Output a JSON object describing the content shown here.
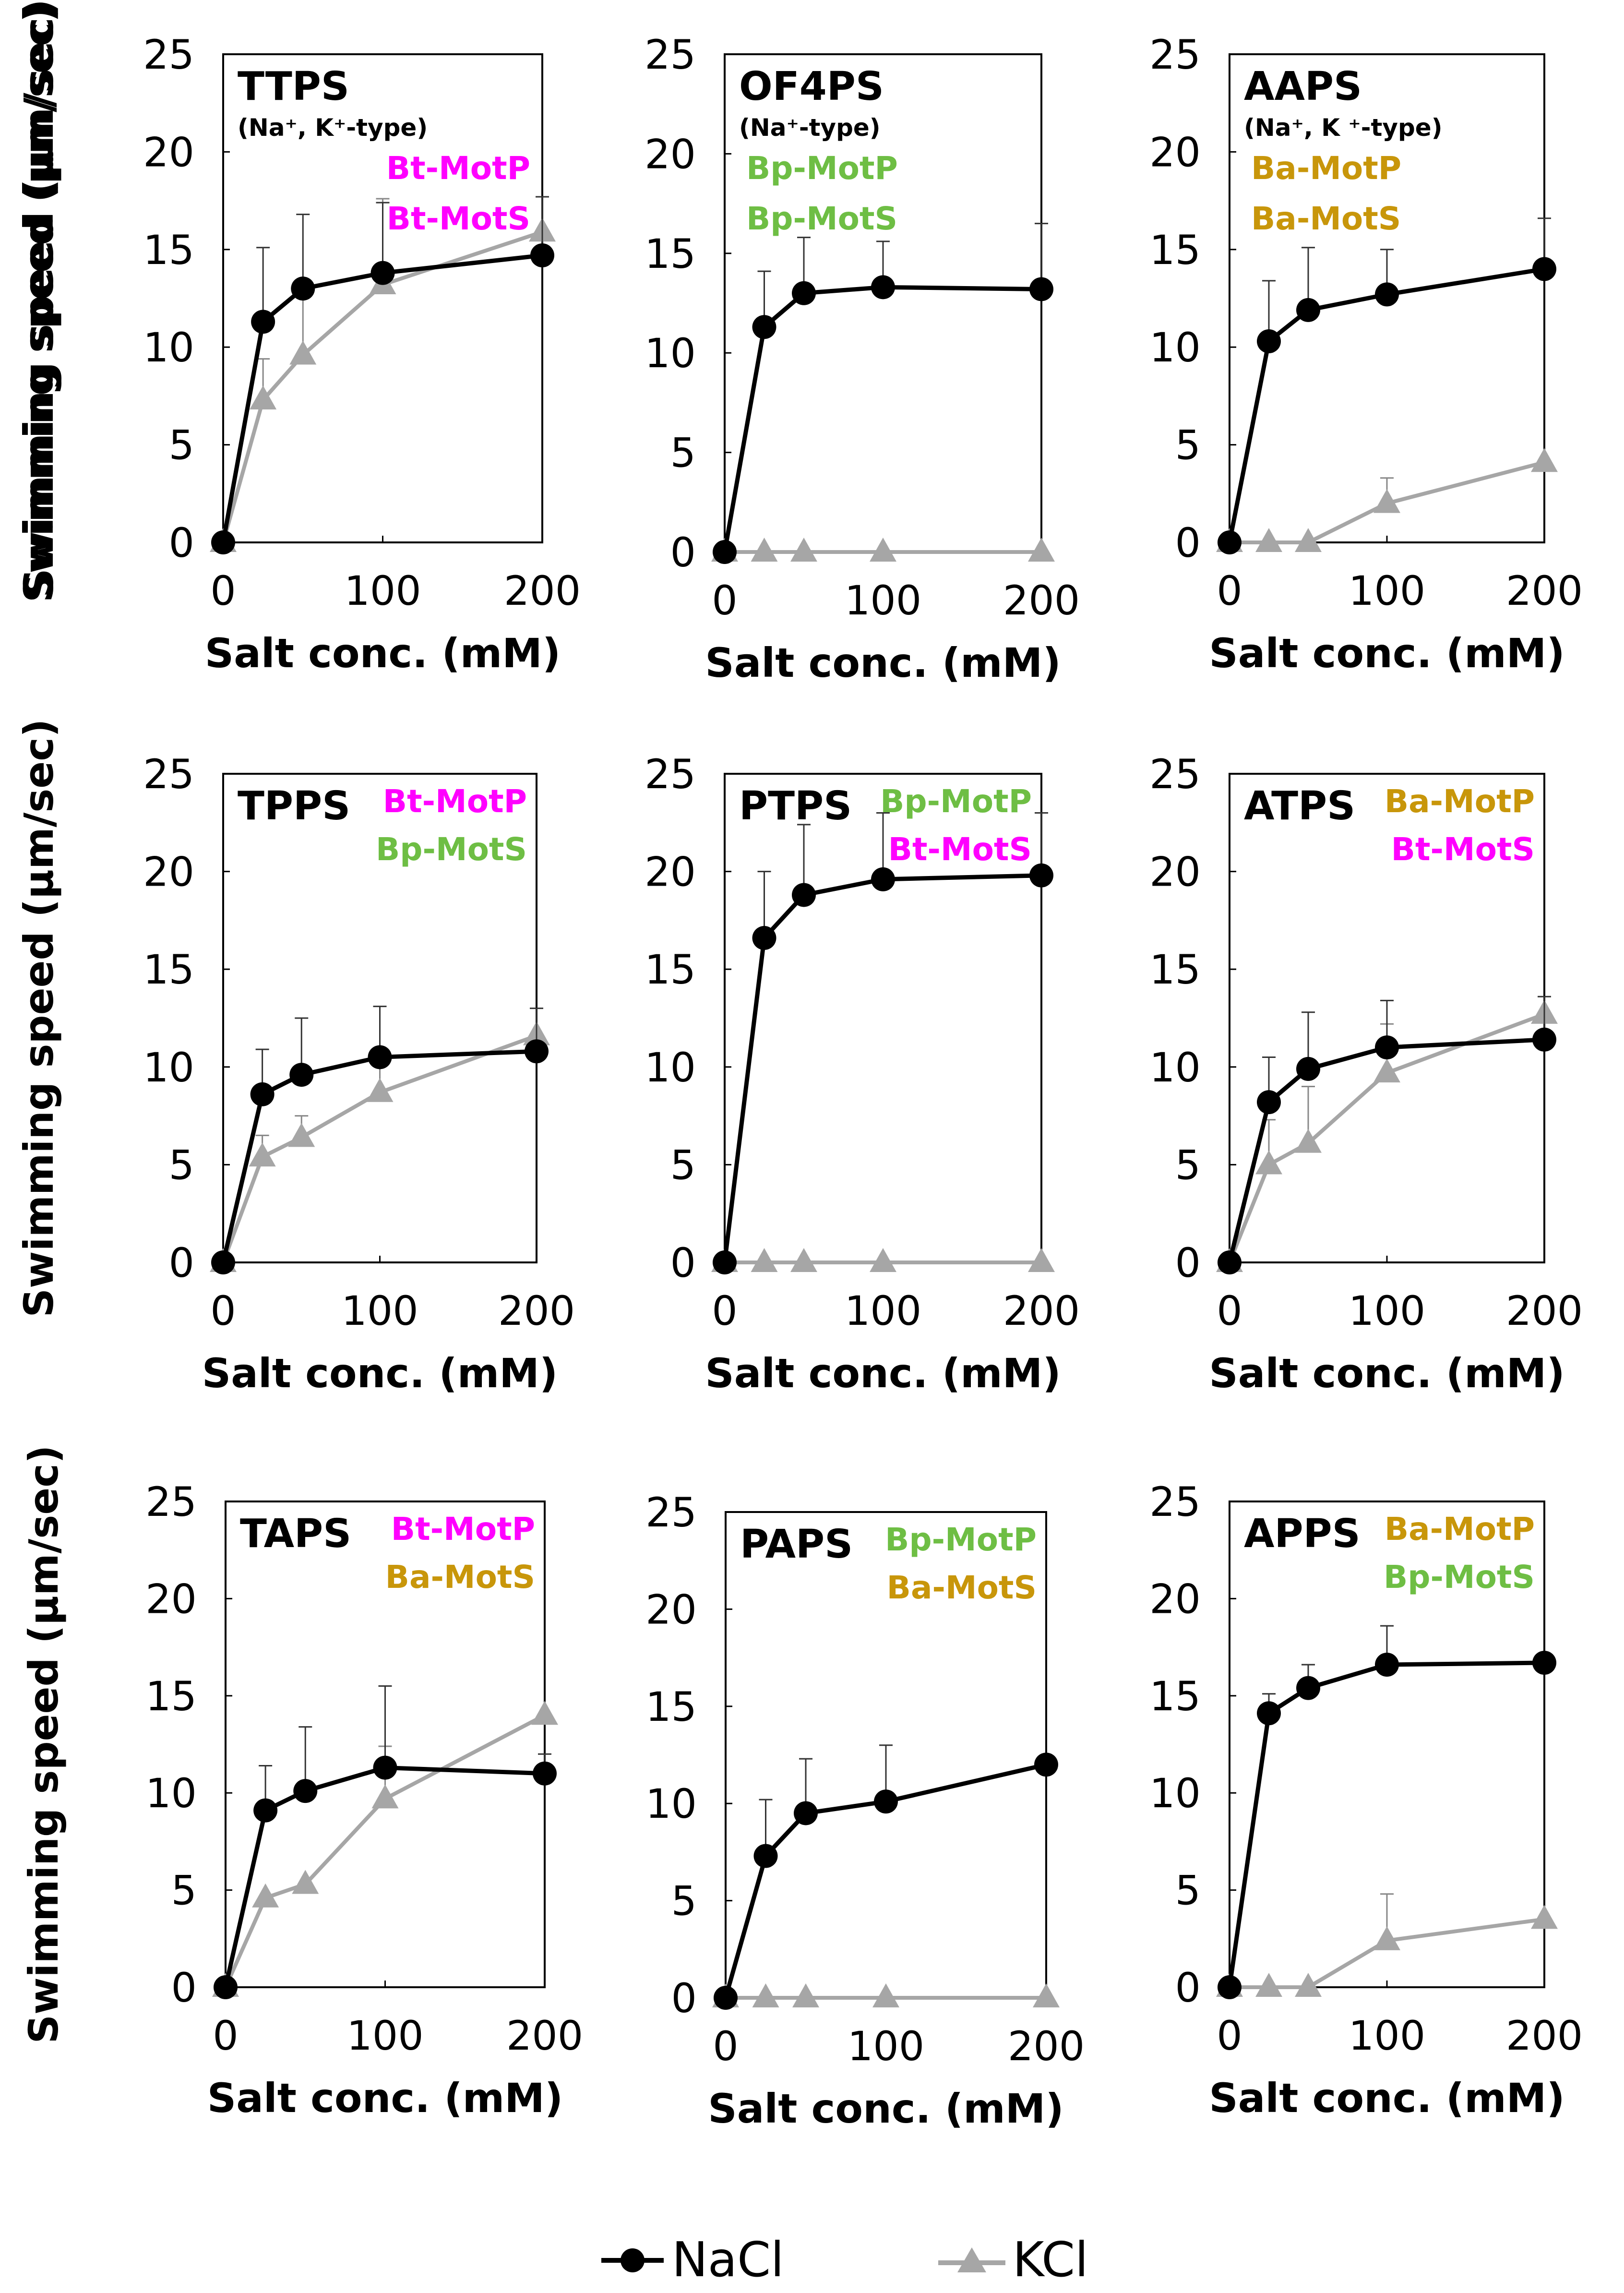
{
  "colors": {
    "nacl": "#000000",
    "kcl": "#a6a6a6",
    "Bt": "#ff00ff",
    "Bp": "#6ebe44",
    "Ba": "#c8960a"
  },
  "axis_texts": {
    "xlabel": "Salt conc. (mM)",
    "ylabel": "Swimming speed (μm/sec)"
  },
  "legend": {
    "nacl": "NaCl",
    "kcl": "KCl"
  },
  "chart_data": [
    {
      "type": "line",
      "title": "TTPS",
      "subtitle": "(Na⁺, K⁺-type)",
      "stator_labels": [
        {
          "text": "Bt-MotP",
          "color_key": "Bt"
        },
        {
          "text": "Bt-MotS",
          "color_key": "Bt"
        }
      ],
      "xlabel": "Salt conc. (mM)",
      "ylabel": "Swimming speed (μm/sec)",
      "xlim": [
        0,
        200
      ],
      "ylim": [
        0,
        25
      ],
      "xticks": [
        "0",
        "100",
        "200"
      ],
      "yticks": [
        "0",
        "5",
        "10",
        "15",
        "20",
        "25"
      ],
      "x": [
        0,
        25,
        50,
        100,
        200
      ],
      "series": [
        {
          "name": "NaCl",
          "values": [
            0,
            11.3,
            13.0,
            13.8,
            14.7
          ],
          "errors": [
            0,
            3.8,
            3.8,
            3.6,
            3.0
          ]
        },
        {
          "name": "KCl",
          "values": [
            0,
            7.3,
            9.6,
            13.2,
            15.9
          ],
          "errors": [
            0,
            2.1,
            3.2,
            4.4,
            0
          ]
        }
      ]
    },
    {
      "type": "line",
      "title": "OF4PS",
      "subtitle": "(Na⁺-type)",
      "stator_labels": [
        {
          "text": "Bp-MotP",
          "color_key": "Bp"
        },
        {
          "text": "Bp-MotS",
          "color_key": "Bp"
        }
      ],
      "xlabel": "Salt conc. (mM)",
      "ylabel": "Swimming speed (μm/sec)",
      "xlim": [
        0,
        200
      ],
      "ylim": [
        0,
        25
      ],
      "xticks": [
        "0",
        "100",
        "200"
      ],
      "yticks": [
        "0",
        "5",
        "10",
        "15",
        "20",
        "25"
      ],
      "x": [
        0,
        25,
        50,
        100,
        200
      ],
      "series": [
        {
          "name": "NaCl",
          "values": [
            0,
            11.3,
            13.0,
            13.3,
            13.2
          ],
          "errors": [
            0,
            2.8,
            2.8,
            2.3,
            3.3
          ]
        },
        {
          "name": "KCl",
          "values": [
            0,
            0,
            0,
            0,
            0
          ],
          "errors": [
            0,
            0,
            0,
            0,
            0
          ]
        }
      ]
    },
    {
      "type": "line",
      "title": "AAPS",
      "subtitle": "(Na⁺, K ⁺-type)",
      "stator_labels": [
        {
          "text": "Ba-MotP",
          "color_key": "Ba"
        },
        {
          "text": "Ba-MotS",
          "color_key": "Ba"
        }
      ],
      "xlabel": "Salt conc. (mM)",
      "ylabel": "Swimming speed (μm/sec)",
      "xlim": [
        0,
        200
      ],
      "ylim": [
        0,
        25
      ],
      "xticks": [
        "0",
        "100",
        "200"
      ],
      "yticks": [
        "0",
        "5",
        "10",
        "15",
        "20",
        "25"
      ],
      "x": [
        0,
        25,
        50,
        100,
        200
      ],
      "series": [
        {
          "name": "NaCl",
          "values": [
            0,
            10.3,
            11.9,
            12.7,
            14.0
          ],
          "errors": [
            0,
            3.1,
            3.2,
            2.3,
            2.6
          ]
        },
        {
          "name": "KCl",
          "values": [
            0,
            0,
            0,
            2.0,
            4.1
          ],
          "errors": [
            0,
            0,
            0,
            1.3,
            0
          ]
        }
      ]
    },
    {
      "type": "line",
      "title": "TPPS",
      "stator_labels": [
        {
          "text": "Bt-MotP",
          "color_key": "Bt"
        },
        {
          "text": "Bp-MotS",
          "color_key": "Bp"
        }
      ],
      "xlabel": "Salt conc. (mM)",
      "ylabel": "Swimming speed (μm/sec)",
      "xlim": [
        0,
        200
      ],
      "ylim": [
        0,
        25
      ],
      "xticks": [
        "0",
        "100",
        "200"
      ],
      "yticks": [
        "0",
        "5",
        "10",
        "15",
        "20",
        "25"
      ],
      "x": [
        0,
        25,
        50,
        100,
        200
      ],
      "series": [
        {
          "name": "NaCl",
          "values": [
            0,
            8.6,
            9.6,
            10.5,
            10.8
          ],
          "errors": [
            0,
            2.3,
            2.9,
            2.6,
            2.2
          ]
        },
        {
          "name": "KCl",
          "values": [
            0,
            5.4,
            6.4,
            8.7,
            11.6
          ],
          "errors": [
            0,
            1.1,
            1.1,
            2.0,
            0
          ]
        }
      ]
    },
    {
      "type": "line",
      "title": "PTPS",
      "stator_labels": [
        {
          "text": "Bp-MotP",
          "color_key": "Bp"
        },
        {
          "text": "Bt-MotS",
          "color_key": "Bt"
        }
      ],
      "xlabel": "Salt conc. (mM)",
      "ylabel": "Swimming speed (μm/sec)",
      "xlim": [
        0,
        200
      ],
      "ylim": [
        0,
        25
      ],
      "xticks": [
        "0",
        "100",
        "200"
      ],
      "yticks": [
        "0",
        "5",
        "10",
        "15",
        "20",
        "25"
      ],
      "x": [
        0,
        25,
        50,
        100,
        200
      ],
      "series": [
        {
          "name": "NaCl",
          "values": [
            0,
            16.6,
            18.8,
            19.6,
            19.8
          ],
          "errors": [
            0,
            3.4,
            3.6,
            3.4,
            3.2
          ]
        },
        {
          "name": "KCl",
          "values": [
            0,
            0,
            0,
            0,
            0
          ],
          "errors": [
            0,
            0,
            0,
            0,
            0
          ]
        }
      ]
    },
    {
      "type": "line",
      "title": "ATPS",
      "stator_labels": [
        {
          "text": "Ba-MotP",
          "color_key": "Ba"
        },
        {
          "text": "Bt-MotS",
          "color_key": "Bt"
        }
      ],
      "xlabel": "Salt conc. (mM)",
      "ylabel": "Swimming speed (μm/sec)",
      "xlim": [
        0,
        200
      ],
      "ylim": [
        0,
        25
      ],
      "xticks": [
        "0",
        "100",
        "200"
      ],
      "yticks": [
        "0",
        "5",
        "10",
        "15",
        "20",
        "25"
      ],
      "x": [
        0,
        25,
        50,
        100,
        200
      ],
      "series": [
        {
          "name": "NaCl",
          "values": [
            0,
            8.2,
            9.9,
            11.0,
            11.4
          ],
          "errors": [
            0,
            2.3,
            2.9,
            2.4,
            2.2
          ]
        },
        {
          "name": "KCl",
          "values": [
            0,
            5.0,
            6.1,
            9.7,
            12.7
          ],
          "errors": [
            0,
            2.3,
            2.9,
            2.5,
            0
          ]
        }
      ]
    },
    {
      "type": "line",
      "title": "TAPS",
      "stator_labels": [
        {
          "text": "Bt-MotP",
          "color_key": "Bt"
        },
        {
          "text": "Ba-MotS",
          "color_key": "Ba"
        }
      ],
      "xlabel": "Salt conc. (mM)",
      "ylabel": "Swimming speed (μm/sec)",
      "xlim": [
        0,
        200
      ],
      "ylim": [
        0,
        25
      ],
      "xticks": [
        "0",
        "100",
        "200"
      ],
      "yticks": [
        "0",
        "5",
        "10",
        "15",
        "20",
        "25"
      ],
      "x": [
        0,
        25,
        50,
        100,
        200
      ],
      "series": [
        {
          "name": "NaCl",
          "values": [
            0,
            9.1,
            10.1,
            11.3,
            11.0
          ],
          "errors": [
            0,
            2.3,
            3.3,
            4.2,
            1.0
          ]
        },
        {
          "name": "KCl",
          "values": [
            0,
            4.6,
            5.3,
            9.7,
            14.0
          ],
          "errors": [
            0,
            0,
            0,
            2.7,
            0
          ]
        }
      ]
    },
    {
      "type": "line",
      "title": "PAPS",
      "stator_labels": [
        {
          "text": "Bp-MotP",
          "color_key": "Bp"
        },
        {
          "text": "Ba-MotS",
          "color_key": "Ba"
        }
      ],
      "xlabel": "Salt conc. (mM)",
      "ylabel": "Swimming speed (μm/sec)",
      "xlim": [
        0,
        200
      ],
      "ylim": [
        0,
        25
      ],
      "xticks": [
        "0",
        "100",
        "200"
      ],
      "yticks": [
        "0",
        "5",
        "10",
        "15",
        "20",
        "25"
      ],
      "x": [
        0,
        25,
        50,
        100,
        200
      ],
      "series": [
        {
          "name": "NaCl",
          "values": [
            0,
            7.3,
            9.5,
            10.1,
            12.0
          ],
          "errors": [
            0,
            2.9,
            2.8,
            2.9,
            0
          ]
        },
        {
          "name": "KCl",
          "values": [
            0,
            0,
            0,
            0,
            0
          ],
          "errors": [
            0,
            0,
            0,
            0,
            0
          ]
        }
      ]
    },
    {
      "type": "line",
      "title": "APPS",
      "stator_labels": [
        {
          "text": "Ba-MotP",
          "color_key": "Ba"
        },
        {
          "text": "Bp-MotS",
          "color_key": "Bp"
        }
      ],
      "xlabel": "Salt conc. (mM)",
      "ylabel": "Swimming speed (μm/sec)",
      "xlim": [
        0,
        200
      ],
      "ylim": [
        0,
        25
      ],
      "xticks": [
        "0",
        "100",
        "200"
      ],
      "yticks": [
        "0",
        "5",
        "10",
        "15",
        "20",
        "25"
      ],
      "x": [
        0,
        25,
        50,
        100,
        200
      ],
      "series": [
        {
          "name": "NaCl",
          "values": [
            0,
            14.1,
            15.4,
            16.6,
            16.7
          ],
          "errors": [
            0,
            1.0,
            1.2,
            2.0,
            0
          ]
        },
        {
          "name": "KCl",
          "values": [
            0,
            0,
            0,
            2.4,
            3.5
          ],
          "errors": [
            0,
            0,
            0,
            2.4,
            0
          ]
        }
      ]
    }
  ]
}
